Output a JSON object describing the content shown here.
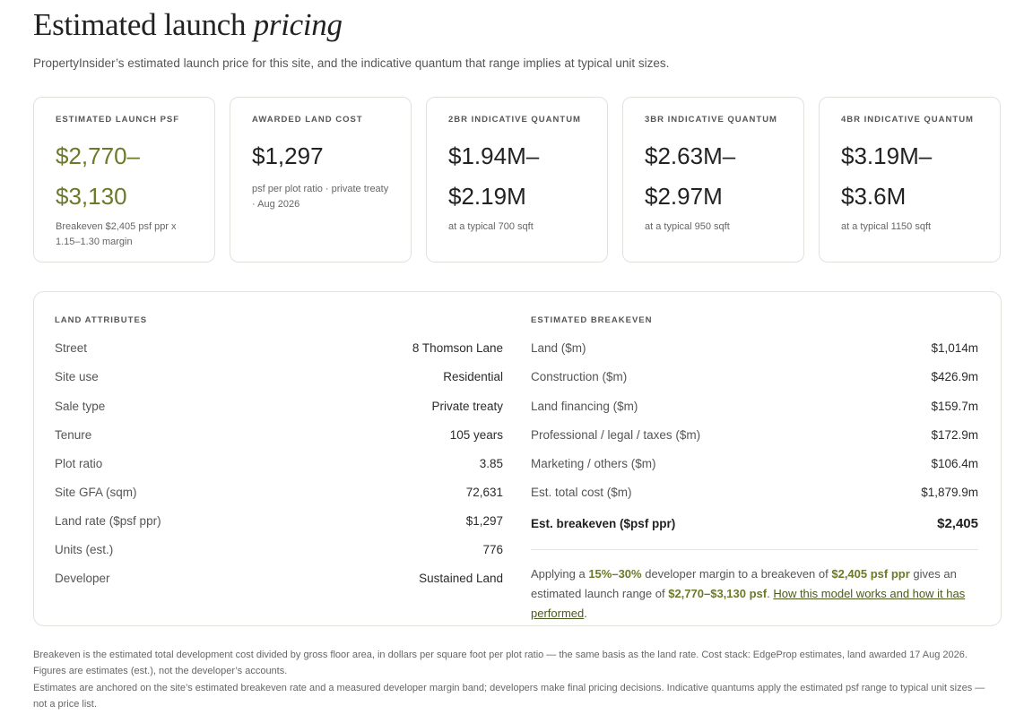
{
  "header": {
    "title_main": "Estimated launch",
    "title_italic": "pricing",
    "subtitle": "PropertyInsider’s estimated launch price for this site, and the indicative quantum that range implies at typical unit sizes."
  },
  "cards": [
    {
      "label": "ESTIMATED LAUNCH PSF",
      "value_line1": "$2,770–",
      "value_line2": "$3,130",
      "note": "Breakeven $2,405 psf ppr x 1.15–1.30 margin"
    },
    {
      "label": "AWARDED LAND COST",
      "value_line1": "$1,297",
      "note": "psf per plot ratio · private treaty · Aug 2026"
    },
    {
      "label": "2BR INDICATIVE QUANTUM",
      "value_line1": "$1.94M–",
      "value_line2": "$2.19M",
      "note": "at a typical 700 sqft"
    },
    {
      "label": "3BR INDICATIVE QUANTUM",
      "value_line1": "$2.63M–",
      "value_line2": "$2.97M",
      "note": "at a typical 950 sqft"
    },
    {
      "label": "4BR INDICATIVE QUANTUM",
      "value_line1": "$3.19M–",
      "value_line2": "$3.6M",
      "note": "at a typical 1150 sqft"
    }
  ],
  "land": {
    "heading": "LAND ATTRIBUTES",
    "rows": [
      {
        "k": "Street",
        "v": "8 Thomson Lane"
      },
      {
        "k": "Site use",
        "v": "Residential"
      },
      {
        "k": "Sale type",
        "v": "Private treaty"
      },
      {
        "k": "Tenure",
        "v": "105 years"
      },
      {
        "k": "Plot ratio",
        "v": "3.85"
      },
      {
        "k": "Site GFA (sqm)",
        "v": "72,631"
      },
      {
        "k": "Land rate ($psf ppr)",
        "v": "$1,297"
      },
      {
        "k": "Units (est.)",
        "v": "776"
      },
      {
        "k": "Developer",
        "v": "Sustained Land"
      }
    ]
  },
  "breakeven": {
    "heading": "ESTIMATED BREAKEVEN",
    "rows": [
      {
        "k": "Land ($m)",
        "v": "$1,014m"
      },
      {
        "k": "Construction ($m)",
        "v": "$426.9m"
      },
      {
        "k": "Land financing ($m)",
        "v": "$159.7m"
      },
      {
        "k": "Professional / legal / taxes ($m)",
        "v": "$172.9m"
      },
      {
        "k": "Marketing / others ($m)",
        "v": "$106.4m"
      },
      {
        "k": "Est. total cost ($m)",
        "v": "$1,879.9m"
      }
    ],
    "total": {
      "k": "Est. breakeven ($psf ppr)",
      "v": "$2,405"
    },
    "explain": {
      "t1": "Applying a ",
      "margin": "15%–30%",
      "t2": " developer margin to a breakeven of ",
      "be": "$2,405 psf ppr",
      "t3": " gives an estimated launch range of ",
      "range": "$2,770–$3,130 psf",
      "t4": ". ",
      "link": "How this model works and how it has performed",
      "t5": "."
    }
  },
  "footnotes": [
    "Breakeven is the estimated total development cost divided by gross floor area, in dollars per square foot per plot ratio — the same basis as the land rate. Cost stack: EdgeProp estimates, land awarded 17 Aug 2026. Figures are estimates (est.), not the developer’s accounts.",
    "Estimates are anchored on the site’s estimated breakeven rate and a measured developer margin band; developers make final pricing decisions. Indicative quantums apply the estimated psf range to typical unit sizes — not a price list."
  ],
  "colors": {
    "accent": "#6b7a2a",
    "border": "#e2e2dc",
    "text": "#2b2b2b",
    "muted": "#555555"
  }
}
